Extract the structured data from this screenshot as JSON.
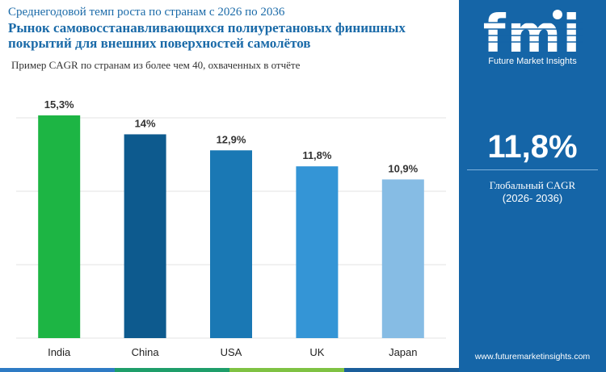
{
  "header": {
    "subtitle": "Среднегодовой темп роста по странам с 2026 по 2036",
    "title": "Рынок самовосстанавливающихся полиуретановых финишных покрытий для внешних поверхностей самолётов",
    "note": "Пример CAGR по странам из более чем 40, охваченных в отчёте"
  },
  "brand": {
    "logo_text": "fmi",
    "tagline": "Future Market Insights",
    "website": "www.futuremarketinsights.com"
  },
  "summary": {
    "value": "11,8%",
    "label": "Глобальный CAGR",
    "period": "(2026- 2036)"
  },
  "colors": {
    "panel": "#1565a7",
    "accent_title": "#1a6aa8",
    "footer": [
      "#2e7bc4",
      "#1e9e6a",
      "#7fc243",
      "#1a5e9a"
    ]
  },
  "chart_data": {
    "type": "bar",
    "categories": [
      "India",
      "China",
      "USA",
      "UK",
      "Japan"
    ],
    "values": [
      15.3,
      14,
      12.9,
      11.8,
      10.9
    ],
    "value_labels": [
      "15,3%",
      "14%",
      "12,9%",
      "11,8%",
      "10,9%"
    ],
    "bar_colors": [
      "#1db544",
      "#0d5a8e",
      "#1a78b4",
      "#3495d6",
      "#86bce4"
    ],
    "ylim": [
      0,
      15.3
    ],
    "grid": true
  }
}
